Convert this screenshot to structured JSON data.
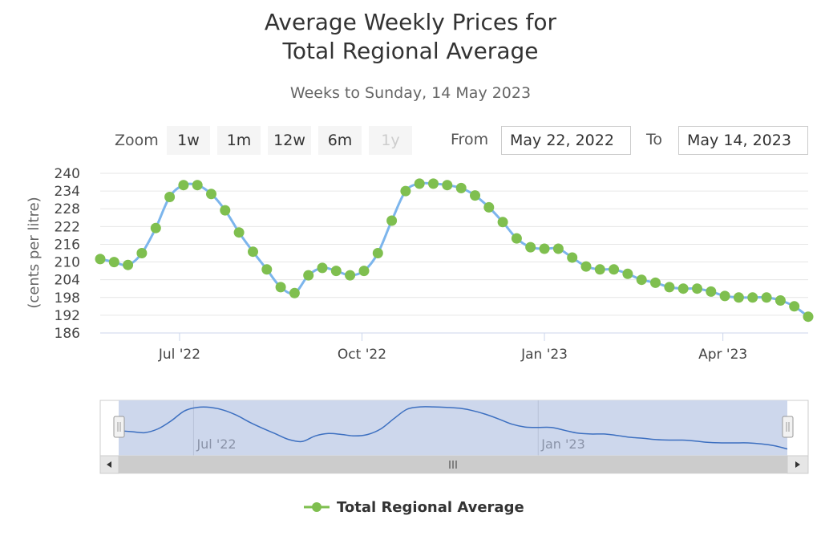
{
  "title_line1": "Average Weekly Prices for",
  "title_line2": "Total Regional Average",
  "subtitle": "Weeks to Sunday, 14 May 2023",
  "zoom": {
    "label": "Zoom",
    "buttons": [
      "1w",
      "1m",
      "12w",
      "6m",
      "1y"
    ],
    "disabled": "1y"
  },
  "range": {
    "from_label": "From",
    "from_value": "May 22, 2022",
    "to_label": "To",
    "to_value": "May 14, 2023"
  },
  "colors": {
    "line": "#7cb5ec",
    "marker": "#7fbf4f",
    "navigator_fill": "#cdd7ec",
    "navigator_line": "#3c6fc0"
  },
  "chart_data": {
    "type": "line",
    "title": "Average Weekly Prices for Total Regional Average",
    "subtitle": "Weeks to Sunday, 14 May 2023",
    "ylabel": "(cents per litre)",
    "ylim": [
      186,
      240
    ],
    "yticks": [
      186,
      192,
      198,
      204,
      210,
      216,
      222,
      228,
      234,
      240
    ],
    "xticks": [
      "Jul '22",
      "Oct '22",
      "Jan '23",
      "Apr '23"
    ],
    "navigator_ticks": [
      "Jul '22",
      "Jan '23"
    ],
    "series": [
      {
        "name": "Total Regional Average",
        "x": [
          "2022-05-22",
          "2022-05-29",
          "2022-06-05",
          "2022-06-12",
          "2022-06-19",
          "2022-06-26",
          "2022-07-03",
          "2022-07-10",
          "2022-07-17",
          "2022-07-24",
          "2022-07-31",
          "2022-08-07",
          "2022-08-14",
          "2022-08-21",
          "2022-08-28",
          "2022-09-04",
          "2022-09-11",
          "2022-09-18",
          "2022-09-25",
          "2022-10-02",
          "2022-10-09",
          "2022-10-16",
          "2022-10-23",
          "2022-10-30",
          "2022-11-06",
          "2022-11-13",
          "2022-11-20",
          "2022-11-27",
          "2022-12-04",
          "2022-12-11",
          "2022-12-18",
          "2022-12-25",
          "2023-01-01",
          "2023-01-08",
          "2023-01-15",
          "2023-01-22",
          "2023-01-29",
          "2023-02-05",
          "2023-02-12",
          "2023-02-19",
          "2023-02-26",
          "2023-03-05",
          "2023-03-12",
          "2023-03-19",
          "2023-03-26",
          "2023-04-02",
          "2023-04-09",
          "2023-04-16",
          "2023-04-23",
          "2023-04-30",
          "2023-05-07",
          "2023-05-14"
        ],
        "values": [
          211.0,
          210.0,
          209.0,
          213.0,
          221.5,
          232.0,
          236.0,
          236.0,
          233.0,
          227.5,
          220.0,
          213.5,
          207.5,
          201.5,
          199.5,
          205.5,
          208.0,
          207.0,
          205.5,
          207.0,
          213.0,
          224.0,
          234.0,
          236.5,
          236.5,
          236.0,
          235.0,
          232.5,
          228.5,
          223.5,
          218.0,
          215.0,
          214.5,
          214.5,
          211.5,
          208.5,
          207.5,
          207.5,
          206.0,
          204.0,
          203.0,
          201.5,
          201.0,
          201.0,
          200.0,
          198.5,
          198.0,
          198.0,
          198.0,
          197.0,
          195.0,
          191.5
        ]
      }
    ],
    "legend": "bottom-center",
    "grid": true
  }
}
